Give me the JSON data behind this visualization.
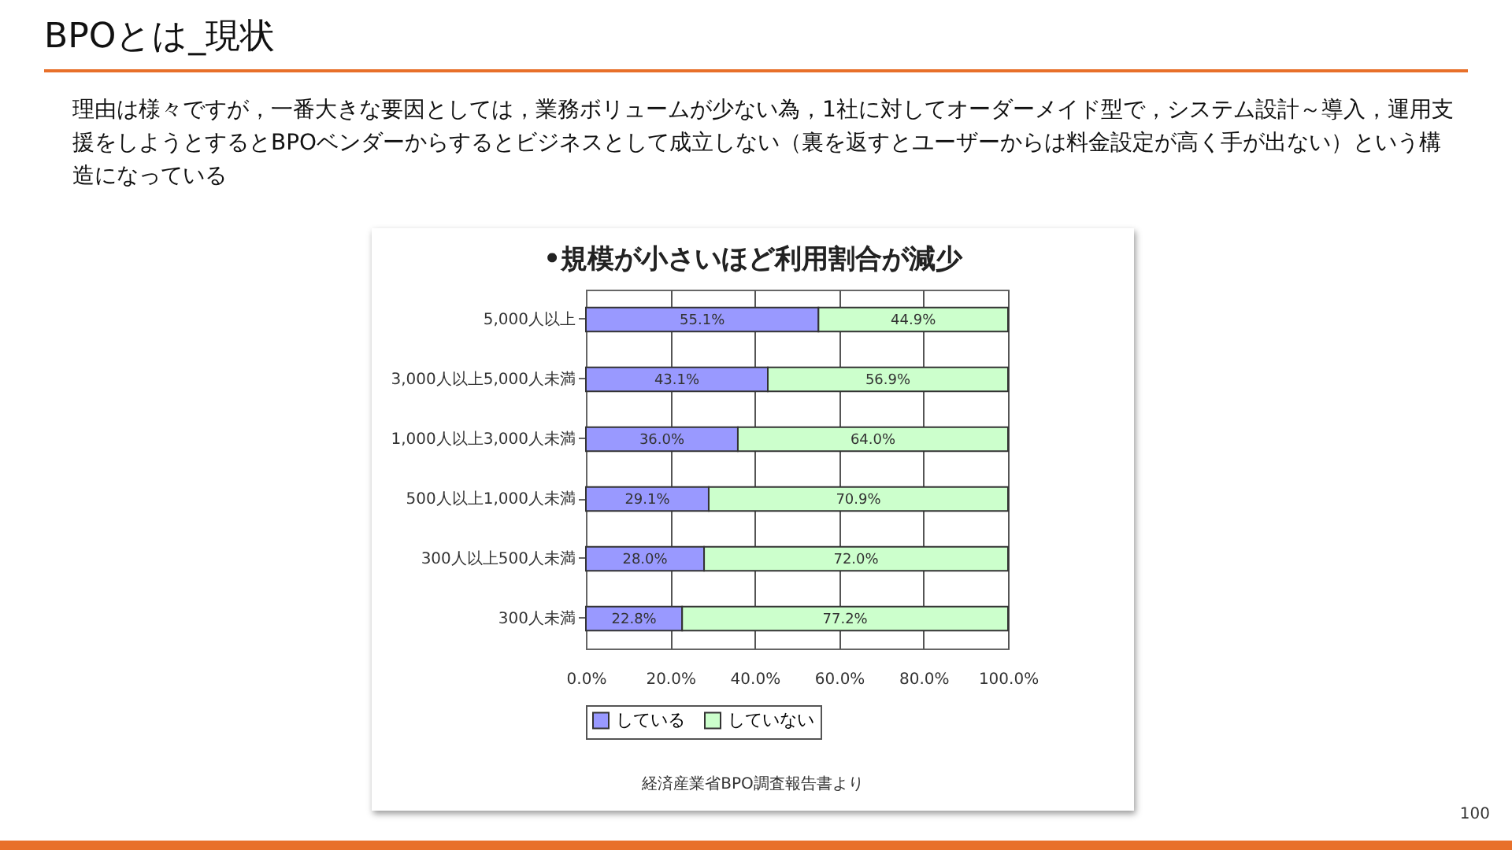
{
  "chart_data": {
    "type": "bar",
    "orientation": "horizontal",
    "stacked": true,
    "title": "BPOとは_現状",
    "subtitle": "理由は様々ですが，一番大きな要因としては，業務ボリュームが少ない為，1社に対してオーダーメイド型で，システム設計～導入，運用支援をしようとするとBPOベンダーからするとビジネスとして成立しない（裏を返すとユーザーからは料金設定が高く手が出ない）という構造になっている",
    "annotations": [
      "•規模が小さいほど利用割合が減少",
      "経済産業省BPO調査報告書より",
      "100"
    ],
    "categories": [
      "5,000人以上",
      "3,000人以上5,000人未満",
      "1,000人以上3,000人未満",
      "500人以上1,000人未満",
      "300人以上500人未満",
      "300人未満"
    ],
    "series": [
      {
        "name": "している",
        "color": "#9999ff",
        "values": [
          55.1,
          43.1,
          36.0,
          29.1,
          28.0,
          22.8
        ],
        "value_labels": [
          "55.1%",
          "43.1%",
          "36.0%",
          "29.1%",
          "28.0%",
          "22.8%"
        ]
      },
      {
        "name": "していない",
        "color": "#ccffcc",
        "values": [
          44.9,
          56.9,
          64.0,
          70.9,
          72.0,
          77.2
        ],
        "value_labels": [
          "44.9%",
          "56.9%",
          "64.0%",
          "70.9%",
          "72.0%",
          "77.2%"
        ]
      }
    ],
    "xlim": [
      0,
      100
    ],
    "xticks": [
      {
        "value": 0,
        "label": "0.0%"
      },
      {
        "value": 20,
        "label": "20.0%"
      },
      {
        "value": 40,
        "label": "40.0%"
      },
      {
        "value": 60,
        "label": "60.0%"
      },
      {
        "value": 80,
        "label": "80.0%"
      },
      {
        "value": 100,
        "label": "100.0%"
      }
    ],
    "grid": "x",
    "legend": "bottom"
  }
}
